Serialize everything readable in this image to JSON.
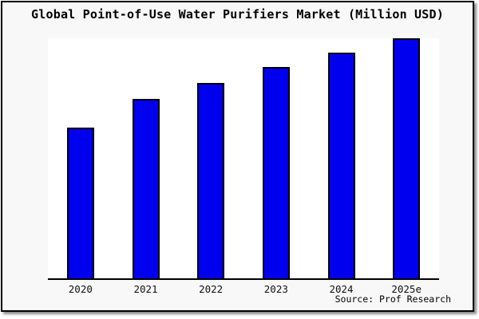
{
  "title": "Global Point-of-Use Water Purifiers Market (Million USD)",
  "source_label": "Source: Prof Research",
  "colors": {
    "card_background": "#f8f8f8",
    "plot_background": "#ffffff",
    "bar_fill": "#0000ee",
    "bar_border": "#000000",
    "axis": "#000000",
    "text": "#000000"
  },
  "chart_data": {
    "type": "bar",
    "title": "Global Point-of-Use Water Purifiers Market (Million USD)",
    "categories": [
      "2020",
      "2021",
      "2022",
      "2023",
      "2024",
      "2025e"
    ],
    "values": [
      62.8,
      74.8,
      81.4,
      87.9,
      94.0,
      100.0
    ],
    "value_note": "No y-axis ticks or data labels are visible; values are relative bar heights estimated from pixels with 2025e = 100",
    "xlabel": "",
    "ylabel": "",
    "ylim": [
      0,
      100
    ],
    "grid": false,
    "legend": false,
    "bar_count": 6,
    "source": "Source: Prof Research"
  }
}
